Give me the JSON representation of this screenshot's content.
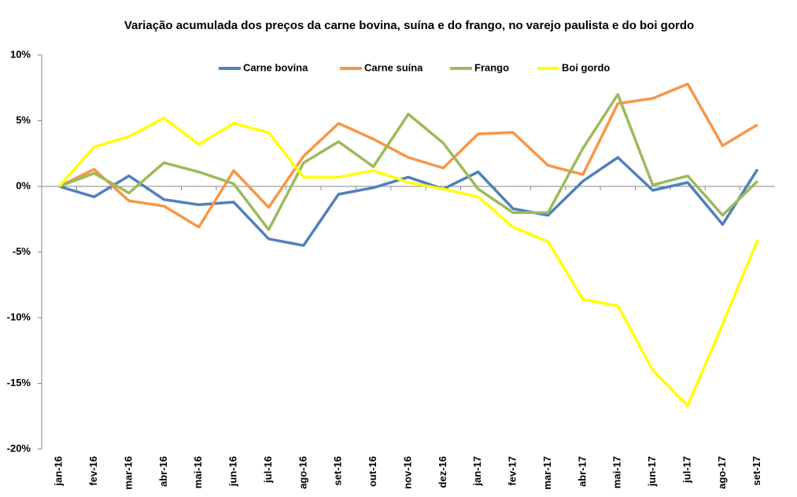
{
  "chart_data": {
    "type": "line",
    "title": "Variação acumulada dos preços da carne bovina, suína e do frango, no varejo paulista e do boi gordo",
    "categories": [
      "jan-16",
      "fev-16",
      "mar-16",
      "abr-16",
      "mai-16",
      "jun-16",
      "jul-16",
      "ago-16",
      "set-16",
      "out-16",
      "nov-16",
      "dez-16",
      "jan-17",
      "fev-17",
      "mar-17",
      "abr-17",
      "mai-17",
      "jun-17",
      "jul-17",
      "ago-17",
      "set-17"
    ],
    "series": [
      {
        "name": "Carne bovina",
        "color": "#4f81bd",
        "values": [
          0,
          -0.8,
          0.8,
          -1.0,
          -1.4,
          -1.2,
          -4.0,
          -4.5,
          -0.6,
          -0.1,
          0.7,
          -0.2,
          1.1,
          -1.7,
          -2.2,
          0.4,
          2.2,
          -0.3,
          0.3,
          -2.9,
          1.3
        ]
      },
      {
        "name": "Carne suína",
        "color": "#f79646",
        "values": [
          0,
          1.3,
          -1.1,
          -1.5,
          -3.1,
          1.2,
          -1.6,
          2.3,
          4.8,
          3.6,
          2.2,
          1.4,
          4.0,
          4.1,
          1.6,
          0.9,
          6.3,
          6.7,
          7.8,
          3.1,
          4.7
        ]
      },
      {
        "name": "Frango",
        "color": "#9bbb59",
        "values": [
          0,
          1.0,
          -0.5,
          1.8,
          1.1,
          0.2,
          -3.3,
          1.8,
          3.4,
          1.5,
          5.5,
          3.3,
          -0.2,
          -2.0,
          -2.0,
          2.9,
          7.0,
          0.1,
          0.8,
          -2.2,
          0.4
        ]
      },
      {
        "name": "Boi gordo",
        "color": "#ffff00",
        "values": [
          0,
          3.0,
          3.8,
          5.2,
          3.2,
          4.8,
          4.1,
          0.7,
          0.7,
          1.2,
          0.3,
          -0.2,
          -0.8,
          -3.1,
          -4.2,
          -8.6,
          -9.1,
          -14.0,
          -16.7,
          -10.5,
          -4.1
        ]
      }
    ],
    "ylim": [
      -20,
      10
    ],
    "yticks": [
      {
        "value": -20,
        "label": "-20%"
      },
      {
        "value": -15,
        "label": "-15%"
      },
      {
        "value": -10,
        "label": "-10%"
      },
      {
        "value": -5,
        "label": "-5%"
      },
      {
        "value": 0,
        "label": "0%"
      },
      {
        "value": 5,
        "label": "5%"
      },
      {
        "value": 10,
        "label": "10%"
      }
    ],
    "legend": "top"
  }
}
